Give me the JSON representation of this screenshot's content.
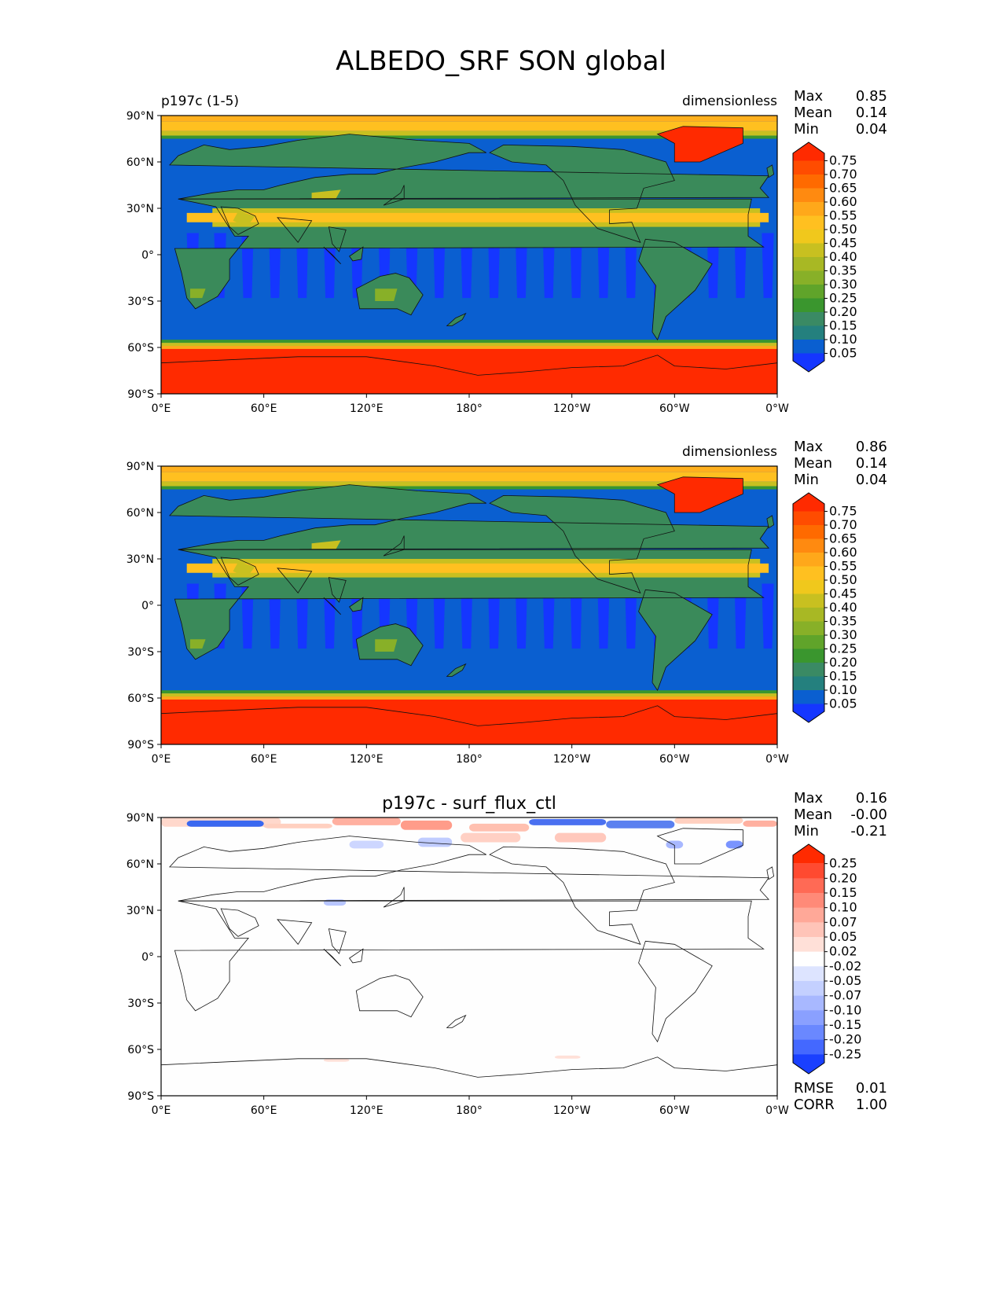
{
  "title": "ALBEDO_SRF SON global",
  "colors": {
    "ocean_dark": "#0a5fd0",
    "ocean_bright": "#1536ff",
    "land_green": "#3a8a5a",
    "sea_ice": "#ff2a00"
  },
  "chart_data": [
    {
      "type": "heatmap",
      "map": "global equirectangular",
      "title_left": "p197c (1-5)",
      "title_center": "",
      "units": "dimensionless",
      "stats": [
        {
          "label": "Max",
          "value": "0.85"
        },
        {
          "label": "Mean",
          "value": "0.14"
        },
        {
          "label": "Min",
          "value": "0.04"
        }
      ],
      "colorbar_levels": [
        "0.75",
        "0.70",
        "0.65",
        "0.60",
        "0.55",
        "0.50",
        "0.45",
        "0.40",
        "0.35",
        "0.30",
        "0.25",
        "0.20",
        "0.15",
        "0.10",
        "0.05"
      ],
      "colorbar_colors": [
        "#ff2a00",
        "#ff4c00",
        "#ff6a00",
        "#ff8a10",
        "#ffa81a",
        "#ffc020",
        "#f0c81c",
        "#c8c020",
        "#a8b824",
        "#88b028",
        "#60a42a",
        "#3a962e",
        "#3a8a64",
        "#24807e",
        "#0a5fd0",
        "#1536ff"
      ],
      "xticks": [
        "0°E",
        "60°E",
        "120°E",
        "180°",
        "120°W",
        "60°W",
        "0°W"
      ],
      "yticks": [
        "90°N",
        "60°N",
        "30°N",
        "0°",
        "30°S",
        "60°S",
        "90°S"
      ],
      "bottom_stats": []
    },
    {
      "type": "heatmap",
      "map": "global equirectangular",
      "title_left": "",
      "title_center": "",
      "units": "dimensionless",
      "stats": [
        {
          "label": "Max",
          "value": "0.86"
        },
        {
          "label": "Mean",
          "value": "0.14"
        },
        {
          "label": "Min",
          "value": "0.04"
        }
      ],
      "colorbar_levels": [
        "0.75",
        "0.70",
        "0.65",
        "0.60",
        "0.55",
        "0.50",
        "0.45",
        "0.40",
        "0.35",
        "0.30",
        "0.25",
        "0.20",
        "0.15",
        "0.10",
        "0.05"
      ],
      "colorbar_colors": [
        "#ff2a00",
        "#ff4c00",
        "#ff6a00",
        "#ff8a10",
        "#ffa81a",
        "#ffc020",
        "#f0c81c",
        "#c8c020",
        "#a8b824",
        "#88b028",
        "#60a42a",
        "#3a962e",
        "#3a8a64",
        "#24807e",
        "#0a5fd0",
        "#1536ff"
      ],
      "xticks": [
        "0°E",
        "60°E",
        "120°E",
        "180°",
        "120°W",
        "60°W",
        "0°W"
      ],
      "yticks": [
        "90°N",
        "60°N",
        "30°N",
        "0°",
        "30°S",
        "60°S",
        "90°S"
      ],
      "bottom_stats": []
    },
    {
      "type": "heatmap",
      "map": "global equirectangular",
      "title_left": "",
      "title_center": "p197c - surf_flux_ctl",
      "units": "",
      "stats": [
        {
          "label": "Max",
          "value": "0.16"
        },
        {
          "label": "Mean",
          "value": "-0.00"
        },
        {
          "label": "Min",
          "value": "-0.21"
        }
      ],
      "colorbar_levels": [
        "0.25",
        "0.20",
        "0.15",
        "0.10",
        "0.07",
        "0.05",
        "0.02",
        "-0.02",
        "-0.05",
        "-0.07",
        "-0.10",
        "-0.15",
        "-0.20",
        "-0.25"
      ],
      "colorbar_colors": [
        "#ff2a00",
        "#ff4a30",
        "#ff6a55",
        "#ff8a78",
        "#ffa898",
        "#ffc4b8",
        "#ffe0d8",
        "#ffffff",
        "#dde4ff",
        "#c4d0ff",
        "#a8b8ff",
        "#8aa0ff",
        "#6a88ff",
        "#4468ff",
        "#1a40ff"
      ],
      "xticks": [
        "0°E",
        "60°E",
        "120°E",
        "180°",
        "120°W",
        "60°W",
        "0°W"
      ],
      "yticks": [
        "90°N",
        "60°N",
        "30°N",
        "0°",
        "30°S",
        "60°S",
        "90°S"
      ],
      "bottom_stats": [
        {
          "label": "RMSE",
          "value": "0.01"
        },
        {
          "label": "CORR",
          "value": "1.00"
        }
      ]
    }
  ]
}
